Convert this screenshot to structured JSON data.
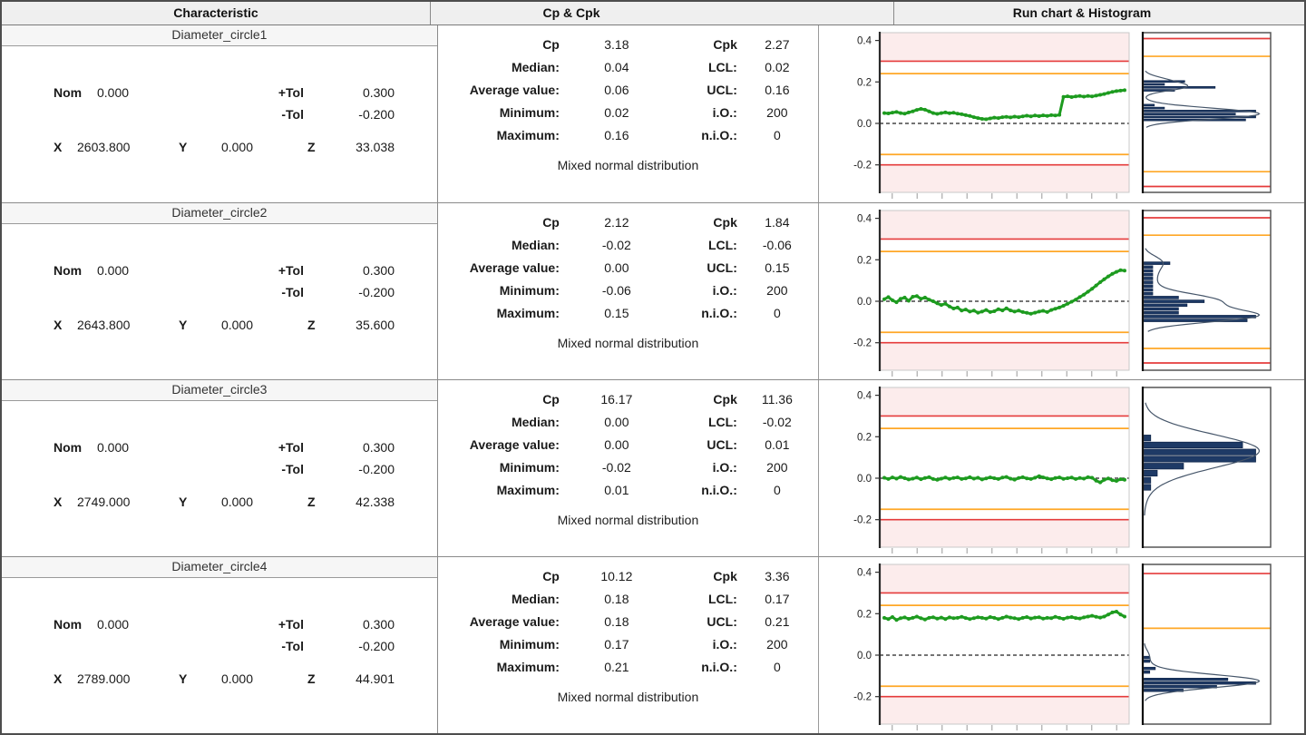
{
  "header": {
    "characteristic": "Characteristic",
    "cp_cpk": "Cp & Cpk",
    "run_chart_histogram": "Run chart & Histogram"
  },
  "colors": {
    "series_green": "#1d9b1f",
    "histogram_navy": "#1e3a66",
    "tolerance_red": "#e53b3b",
    "warning_orange": "#ffa726",
    "out_of_tolerance_pink": "#fcecec",
    "header_gray": "#efefef"
  },
  "rows": [
    {
      "name": "Diameter_circle1",
      "nom_label": "Nom",
      "nom": "0.000",
      "ptol_label": "+Tol",
      "ptol": "0.300",
      "mtol_label": "-Tol",
      "mtol": "-0.200",
      "x_label": "X",
      "x": "2603.800",
      "y_label": "Y",
      "y": "0.000",
      "z_label": "Z",
      "z": "33.038",
      "stats": [
        {
          "l1": "Cp",
          "v1": "3.18",
          "l2": "Cpk",
          "v2": "2.27"
        },
        {
          "l1": "Median:",
          "v1": "0.04",
          "l2": "LCL:",
          "v2": "0.02"
        },
        {
          "l1": "Average value:",
          "v1": "0.06",
          "l2": "UCL:",
          "v2": "0.16"
        },
        {
          "l1": "Minimum:",
          "v1": "0.02",
          "l2": "i.O.:",
          "v2": "200"
        },
        {
          "l1": "Maximum:",
          "v1": "0.16",
          "l2": "n.i.O.:",
          "v2": "0"
        }
      ],
      "distribution": "Mixed normal distribution"
    },
    {
      "name": "Diameter_circle2",
      "nom_label": "Nom",
      "nom": "0.000",
      "ptol_label": "+Tol",
      "ptol": "0.300",
      "mtol_label": "-Tol",
      "mtol": "-0.200",
      "x_label": "X",
      "x": "2643.800",
      "y_label": "Y",
      "y": "0.000",
      "z_label": "Z",
      "z": "35.600",
      "stats": [
        {
          "l1": "Cp",
          "v1": "2.12",
          "l2": "Cpk",
          "v2": "1.84"
        },
        {
          "l1": "Median:",
          "v1": "-0.02",
          "l2": "LCL:",
          "v2": "-0.06"
        },
        {
          "l1": "Average value:",
          "v1": "0.00",
          "l2": "UCL:",
          "v2": "0.15"
        },
        {
          "l1": "Minimum:",
          "v1": "-0.06",
          "l2": "i.O.:",
          "v2": "200"
        },
        {
          "l1": "Maximum:",
          "v1": "0.15",
          "l2": "n.i.O.:",
          "v2": "0"
        }
      ],
      "distribution": "Mixed normal distribution"
    },
    {
      "name": "Diameter_circle3",
      "nom_label": "Nom",
      "nom": "0.000",
      "ptol_label": "+Tol",
      "ptol": "0.300",
      "mtol_label": "-Tol",
      "mtol": "-0.200",
      "x_label": "X",
      "x": "2749.000",
      "y_label": "Y",
      "y": "0.000",
      "z_label": "Z",
      "z": "42.338",
      "stats": [
        {
          "l1": "Cp",
          "v1": "16.17",
          "l2": "Cpk",
          "v2": "11.36"
        },
        {
          "l1": "Median:",
          "v1": "0.00",
          "l2": "LCL:",
          "v2": "-0.02"
        },
        {
          "l1": "Average value:",
          "v1": "0.00",
          "l2": "UCL:",
          "v2": "0.01"
        },
        {
          "l1": "Minimum:",
          "v1": "-0.02",
          "l2": "i.O.:",
          "v2": "200"
        },
        {
          "l1": "Maximum:",
          "v1": "0.01",
          "l2": "n.i.O.:",
          "v2": "0"
        }
      ],
      "distribution": "Mixed normal distribution"
    },
    {
      "name": "Diameter_circle4",
      "nom_label": "Nom",
      "nom": "0.000",
      "ptol_label": "+Tol",
      "ptol": "0.300",
      "mtol_label": "-Tol",
      "mtol": "-0.200",
      "x_label": "X",
      "x": "2789.000",
      "y_label": "Y",
      "y": "0.000",
      "z_label": "Z",
      "z": "44.901",
      "stats": [
        {
          "l1": "Cp",
          "v1": "10.12",
          "l2": "Cpk",
          "v2": "3.36"
        },
        {
          "l1": "Median:",
          "v1": "0.18",
          "l2": "LCL:",
          "v2": "0.17"
        },
        {
          "l1": "Average value:",
          "v1": "0.18",
          "l2": "UCL:",
          "v2": "0.21"
        },
        {
          "l1": "Minimum:",
          "v1": "0.17",
          "l2": "i.O.:",
          "v2": "200"
        },
        {
          "l1": "Maximum:",
          "v1": "0.21",
          "l2": "n.i.O.:",
          "v2": "0"
        }
      ],
      "distribution": "Mixed normal distribution"
    }
  ],
  "chart_data": [
    {
      "type": "line",
      "name": "Diameter_circle1 run chart & histogram",
      "ylim": [
        -0.33,
        0.44
      ],
      "y_ticks": [
        0.4,
        0.2,
        0.0,
        -0.2
      ],
      "nominal": 0.0,
      "tolerance_upper": 0.3,
      "tolerance_lower": -0.2,
      "warning_upper": 0.24,
      "warning_lower": -0.15,
      "x_tick_count": 10,
      "hist_range": [
        -0.22,
        0.32
      ],
      "hist_bins": 14,
      "kde_div": 11,
      "series": [
        0.05,
        0.048,
        0.052,
        0.055,
        0.05,
        0.047,
        0.053,
        0.058,
        0.065,
        0.07,
        0.066,
        0.058,
        0.05,
        0.046,
        0.05,
        0.053,
        0.049,
        0.051,
        0.047,
        0.044,
        0.04,
        0.036,
        0.03,
        0.026,
        0.022,
        0.02,
        0.024,
        0.028,
        0.026,
        0.03,
        0.032,
        0.029,
        0.033,
        0.03,
        0.034,
        0.037,
        0.034,
        0.038,
        0.035,
        0.039,
        0.036,
        0.04,
        0.038,
        0.041,
        0.128,
        0.131,
        0.127,
        0.13,
        0.132,
        0.129,
        0.132,
        0.13,
        0.134,
        0.138,
        0.142,
        0.147,
        0.152,
        0.156,
        0.158,
        0.16
      ]
    },
    {
      "type": "line",
      "name": "Diameter_circle2 run chart & histogram",
      "ylim": [
        -0.33,
        0.44
      ],
      "y_ticks": [
        0.4,
        0.2,
        0.0,
        -0.2
      ],
      "nominal": 0.0,
      "tolerance_upper": 0.3,
      "tolerance_lower": -0.2,
      "warning_upper": 0.24,
      "warning_lower": -0.15,
      "x_tick_count": 10,
      "hist_range": [
        -0.225,
        0.325
      ],
      "hist_bins": 16,
      "kde_div": 11,
      "series": [
        0.01,
        0.02,
        0.005,
        -0.005,
        0.012,
        0.018,
        0.002,
        0.022,
        0.025,
        0.012,
        0.018,
        0.008,
        0.0,
        -0.01,
        -0.018,
        -0.012,
        -0.025,
        -0.035,
        -0.03,
        -0.045,
        -0.04,
        -0.05,
        -0.045,
        -0.055,
        -0.05,
        -0.042,
        -0.052,
        -0.048,
        -0.038,
        -0.044,
        -0.034,
        -0.044,
        -0.05,
        -0.045,
        -0.052,
        -0.056,
        -0.06,
        -0.055,
        -0.05,
        -0.046,
        -0.052,
        -0.042,
        -0.036,
        -0.03,
        -0.022,
        -0.012,
        -0.002,
        0.008,
        0.02,
        0.032,
        0.046,
        0.06,
        0.076,
        0.092,
        0.106,
        0.12,
        0.132,
        0.142,
        0.15,
        0.148
      ]
    },
    {
      "type": "line",
      "name": "Diameter_circle3 run chart & histogram",
      "ylim": [
        -0.33,
        0.44
      ],
      "y_ticks": [
        0.4,
        0.2,
        0.0,
        -0.2
      ],
      "nominal": 0.0,
      "tolerance_upper": 0.3,
      "tolerance_lower": -0.2,
      "warning_upper": 0.24,
      "warning_lower": -0.15,
      "x_tick_count": 10,
      "hist_range": [
        -0.05,
        0.035
      ],
      "hist_bins": 8,
      "kde_div": 4,
      "series": [
        0.002,
        -0.004,
        0.004,
        -0.002,
        0.006,
        0.0,
        -0.006,
        -0.002,
        0.003,
        -0.005,
        0.001,
        0.005,
        -0.004,
        -0.008,
        -0.002,
        0.003,
        -0.003,
        0.001,
        0.004,
        -0.004,
        -0.001,
        0.005,
        -0.002,
        0.002,
        -0.006,
        -0.001,
        0.004,
        0.0,
        -0.004,
        0.003,
        0.006,
        -0.002,
        -0.007,
        0.001,
        0.005,
        -0.001,
        -0.004,
        0.002,
        0.01,
        0.004,
        -0.001,
        -0.005,
        0.001,
        0.004,
        -0.003,
        0.0,
        0.003,
        -0.004,
        0.001,
        -0.002,
        0.005,
        0.002,
        -0.012,
        -0.02,
        -0.008,
        -0.001,
        -0.01,
        -0.013,
        -0.005,
        -0.008
      ]
    },
    {
      "type": "line",
      "name": "Diameter_circle4 run chart & histogram",
      "ylim": [
        -0.33,
        0.44
      ],
      "y_ticks": [
        0.4,
        0.2,
        0.0,
        -0.2
      ],
      "nominal": 0.0,
      "tolerance_upper": 0.3,
      "tolerance_lower": -0.2,
      "warning_upper": 0.24,
      "warning_lower": -0.15,
      "x_tick_count": 10,
      "hist_range": [
        0.135,
        0.31
      ],
      "hist_bins": 10,
      "kde_div": 7,
      "series": [
        0.18,
        0.174,
        0.184,
        0.17,
        0.178,
        0.182,
        0.175,
        0.18,
        0.186,
        0.178,
        0.172,
        0.18,
        0.183,
        0.176,
        0.181,
        0.174,
        0.182,
        0.178,
        0.18,
        0.185,
        0.179,
        0.174,
        0.178,
        0.183,
        0.18,
        0.176,
        0.184,
        0.18,
        0.174,
        0.18,
        0.186,
        0.181,
        0.178,
        0.174,
        0.18,
        0.184,
        0.177,
        0.181,
        0.183,
        0.176,
        0.18,
        0.178,
        0.185,
        0.18,
        0.175,
        0.181,
        0.184,
        0.179,
        0.177,
        0.182,
        0.186,
        0.19,
        0.185,
        0.181,
        0.186,
        0.196,
        0.206,
        0.21,
        0.196,
        0.186
      ]
    }
  ]
}
